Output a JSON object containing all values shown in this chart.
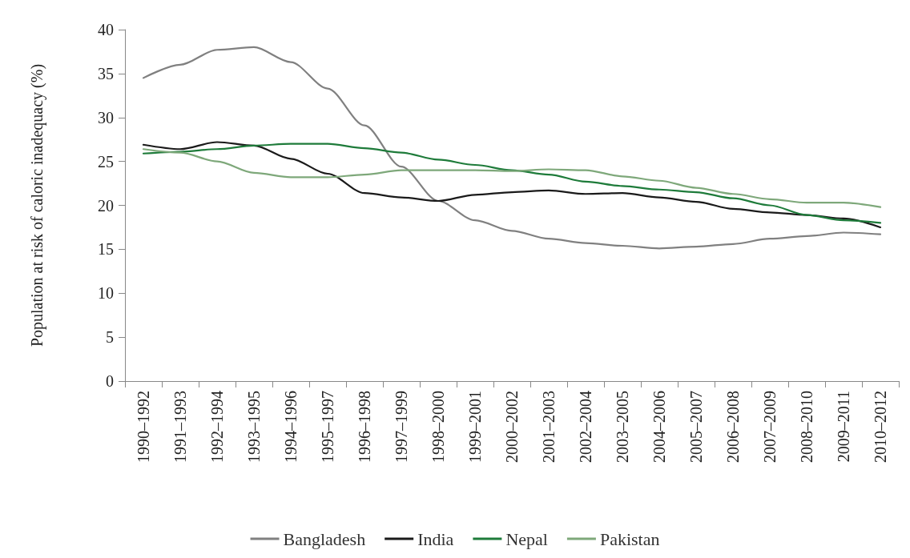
{
  "chart_data": {
    "type": "line",
    "ylabel": "Population at risk of caloric inadequacy (%)",
    "categories": [
      "1990–1992",
      "1991–1993",
      "1992–1994",
      "1993–1995",
      "1994–1996",
      "1995–1997",
      "1996–1998",
      "1997–1999",
      "1998–2000",
      "1999–2001",
      "2000–2002",
      "2001–2003",
      "2002–2004",
      "2003–2005",
      "2004–2006",
      "2005–2007",
      "2006–2008",
      "2007–2009",
      "2008–2010",
      "2009–2011",
      "2010–2012"
    ],
    "series": [
      {
        "name": "Bangladesh",
        "color": "#808080",
        "values": [
          34.5,
          36.0,
          37.7,
          38.0,
          36.3,
          33.3,
          29.1,
          24.4,
          20.5,
          18.3,
          17.1,
          16.2,
          15.7,
          15.4,
          15.1,
          15.3,
          15.6,
          16.2,
          16.5,
          16.9,
          16.7
        ]
      },
      {
        "name": "India",
        "color": "#1a1a1a",
        "values": [
          26.9,
          26.4,
          27.2,
          26.8,
          25.3,
          23.6,
          21.4,
          20.9,
          20.5,
          21.2,
          21.5,
          21.7,
          21.3,
          21.4,
          20.9,
          20.4,
          19.6,
          19.2,
          18.9,
          18.5,
          17.5
        ]
      },
      {
        "name": "Nepal",
        "color": "#1e7b3a",
        "values": [
          25.9,
          26.1,
          26.4,
          26.8,
          27.0,
          27.0,
          26.5,
          26.0,
          25.2,
          24.6,
          24.0,
          23.5,
          22.7,
          22.2,
          21.8,
          21.5,
          20.8,
          20.0,
          18.9,
          18.3,
          18.0
        ]
      },
      {
        "name": "Pakistan",
        "color": "#7ea87a",
        "values": [
          26.4,
          26.0,
          25.0,
          23.7,
          23.2,
          23.2,
          23.5,
          24.0,
          24.0,
          24.0,
          23.9,
          24.1,
          24.0,
          23.3,
          22.8,
          22.0,
          21.3,
          20.7,
          20.3,
          20.3,
          19.8
        ]
      }
    ],
    "ylim": [
      0,
      40
    ],
    "yticks": [
      0,
      5,
      10,
      15,
      20,
      25,
      30,
      35,
      40
    ],
    "grid": false,
    "legend": "bottom",
    "marker": "none",
    "line_style": "solid"
  }
}
